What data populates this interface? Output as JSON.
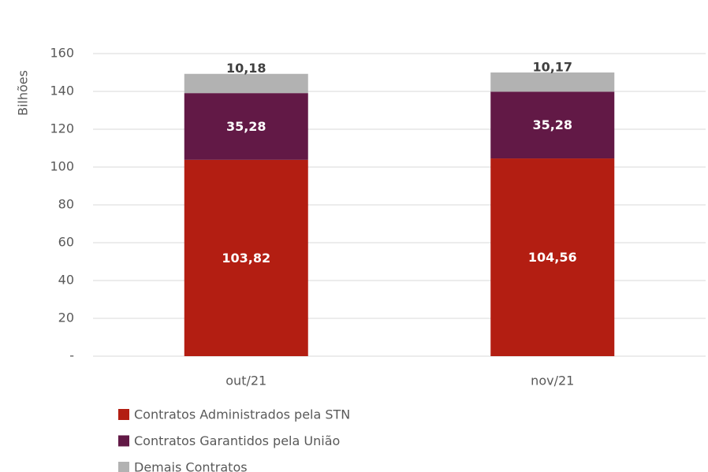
{
  "chart_data": {
    "type": "stacked_bar",
    "y_label": "Bilhões",
    "categories": [
      "out/21",
      "nov/21"
    ],
    "series": [
      {
        "name": "Contratos Administrados pela STN",
        "color": "#b31e12",
        "values": [
          103.82,
          104.56
        ],
        "value_labels": [
          "103,82",
          "104,56"
        ]
      },
      {
        "name": "Contratos Garantidos pela União",
        "color": "#621946",
        "values": [
          35.28,
          35.28
        ],
        "value_labels": [
          "35,28",
          "35,28"
        ]
      },
      {
        "name": "Demais Contratos",
        "color": "#b2b2b2",
        "values": [
          10.18,
          10.17
        ],
        "value_labels": [
          "10,18",
          "10,17"
        ]
      }
    ],
    "ylim": [
      0,
      160
    ],
    "yticks": [
      {
        "value": 0,
        "label": "-"
      },
      20,
      40,
      60,
      80,
      100,
      120,
      140,
      160
    ],
    "grid": true,
    "legend": "bottom"
  }
}
